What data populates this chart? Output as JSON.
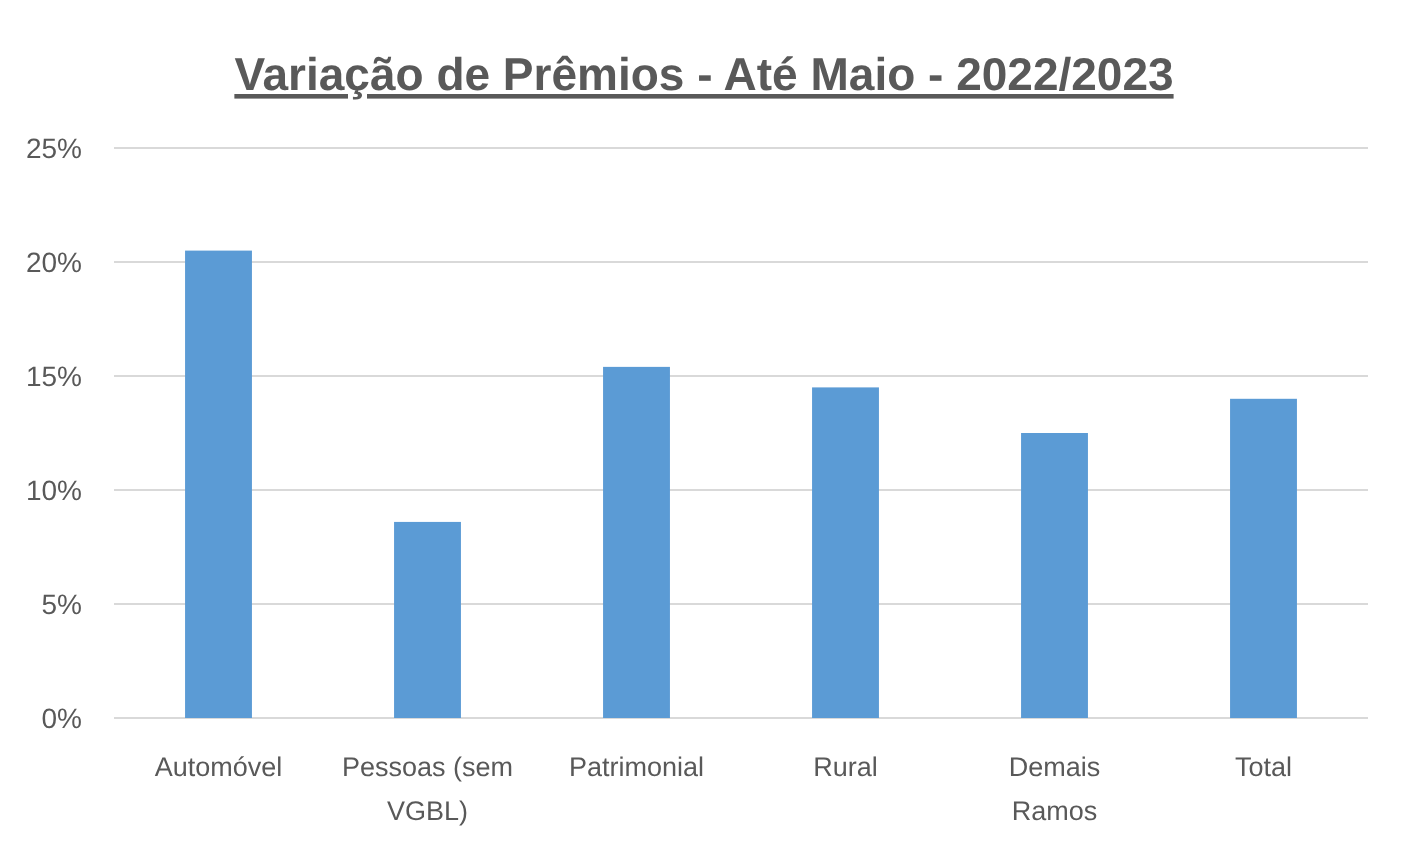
{
  "chart_data": {
    "type": "bar",
    "title": "Variação de Prêmios - Até Maio - 2022/2023",
    "categories": [
      "Automóvel",
      "Pessoas (sem VGBL)",
      "Patrimonial",
      "Rural",
      "Demais Ramos",
      "Total"
    ],
    "values": [
      20.5,
      8.6,
      15.4,
      14.5,
      12.5,
      14.0
    ],
    "color": "#5b9bd5",
    "ylim": [
      0,
      25
    ],
    "yticks": [
      {
        "value": 0,
        "label": "0%"
      },
      {
        "value": 5,
        "label": "5%"
      },
      {
        "value": 10,
        "label": "10%"
      },
      {
        "value": 15,
        "label": "15%"
      },
      {
        "value": 20,
        "label": "20%"
      },
      {
        "value": 25,
        "label": "25%"
      }
    ],
    "grid": "y"
  }
}
